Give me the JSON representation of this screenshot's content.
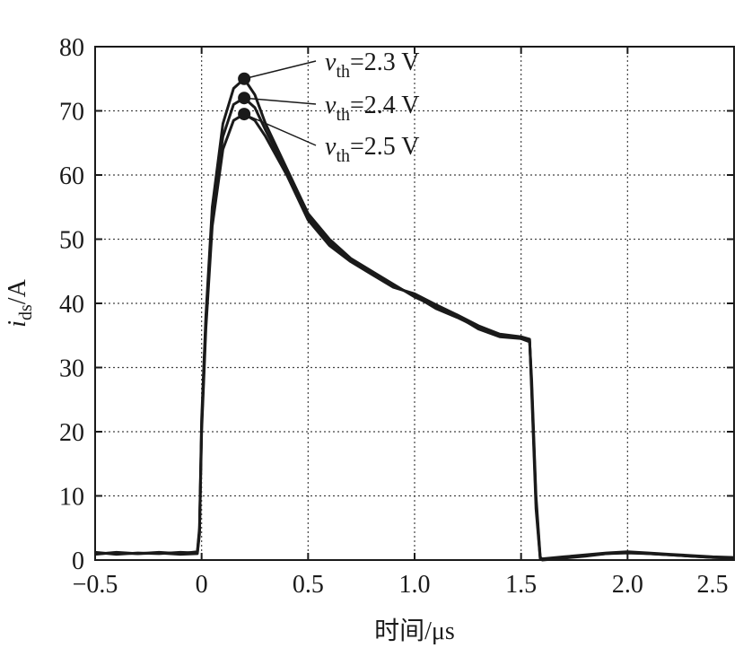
{
  "chart_data": {
    "type": "line",
    "xlabel": "时间/μs",
    "ylabel": {
      "main": "i",
      "sub": "ds",
      "unit": "/A"
    },
    "xlim": [
      -0.5,
      2.5
    ],
    "ylim": [
      0,
      80
    ],
    "xticks": [
      -0.5,
      0,
      0.5,
      1.0,
      1.5,
      2.0,
      2.5
    ],
    "xtick_labels": [
      "−0.5",
      "0",
      "0.5",
      "1.0",
      "1.5",
      "2.0",
      "2.5"
    ],
    "yticks": [
      0,
      10,
      20,
      30,
      40,
      50,
      60,
      70,
      80
    ],
    "ytick_labels": [
      "0",
      "10",
      "20",
      "30",
      "40",
      "50",
      "60",
      "70",
      "80"
    ],
    "grid": true,
    "series": [
      {
        "name": "vth=2.3 V",
        "x": [
          -0.5,
          -0.4,
          -0.3,
          -0.2,
          -0.1,
          -0.02,
          -0.01,
          0.0,
          0.02,
          0.05,
          0.1,
          0.15,
          0.2,
          0.25,
          0.3,
          0.4,
          0.5,
          0.6,
          0.7,
          0.8,
          0.9,
          1.0,
          1.1,
          1.2,
          1.3,
          1.4,
          1.5,
          1.54,
          1.55,
          1.57,
          1.59,
          1.6,
          1.7,
          1.8,
          1.9,
          2.0,
          2.1,
          2.2,
          2.3,
          2.4,
          2.5
        ],
        "y": [
          1.0,
          1.1,
          1.0,
          1.2,
          1.0,
          1.3,
          5.0,
          22.0,
          38.0,
          55.0,
          68.0,
          73.5,
          75.0,
          72.5,
          68.0,
          61.0,
          54.0,
          50.0,
          47.0,
          45.0,
          43.0,
          41.0,
          39.5,
          38.0,
          36.0,
          34.8,
          34.5,
          34.0,
          28.0,
          10.0,
          0.5,
          0.0,
          0.3,
          0.6,
          1.0,
          1.2,
          1.0,
          0.8,
          0.6,
          0.4,
          0.3
        ]
      },
      {
        "name": "vth=2.4 V",
        "x": [
          -0.5,
          -0.4,
          -0.3,
          -0.2,
          -0.1,
          -0.02,
          -0.01,
          0.0,
          0.02,
          0.05,
          0.1,
          0.15,
          0.2,
          0.25,
          0.3,
          0.4,
          0.5,
          0.6,
          0.7,
          0.8,
          0.9,
          1.0,
          1.1,
          1.2,
          1.3,
          1.4,
          1.5,
          1.54,
          1.55,
          1.57,
          1.59,
          1.6,
          1.7,
          1.8,
          1.9,
          2.0,
          2.1,
          2.2,
          2.3,
          2.4,
          2.5
        ],
        "y": [
          1.2,
          0.9,
          1.1,
          1.0,
          1.2,
          1.1,
          4.5,
          21.0,
          37.0,
          54.0,
          66.0,
          71.0,
          72.0,
          70.5,
          67.0,
          60.5,
          53.5,
          49.5,
          46.8,
          44.8,
          42.8,
          41.2,
          39.2,
          37.8,
          36.2,
          35.0,
          34.6,
          34.2,
          27.0,
          9.0,
          0.3,
          0.2,
          0.5,
          0.8,
          1.1,
          1.3,
          1.1,
          0.9,
          0.7,
          0.5,
          0.4
        ]
      },
      {
        "name": "vth=2.5 V",
        "x": [
          -0.5,
          -0.4,
          -0.3,
          -0.2,
          -0.1,
          -0.02,
          -0.01,
          0.0,
          0.02,
          0.05,
          0.1,
          0.15,
          0.2,
          0.25,
          0.3,
          0.4,
          0.5,
          0.6,
          0.7,
          0.8,
          0.9,
          1.0,
          1.1,
          1.2,
          1.3,
          1.4,
          1.5,
          1.54,
          1.55,
          1.57,
          1.59,
          1.6,
          1.7,
          1.8,
          1.9,
          2.0,
          2.1,
          2.2,
          2.3,
          2.4,
          2.5
        ],
        "y": [
          0.9,
          1.2,
          1.0,
          1.1,
          0.9,
          1.0,
          4.0,
          20.0,
          36.0,
          52.0,
          64.0,
          68.5,
          69.5,
          68.5,
          66.0,
          60.0,
          53.0,
          49.0,
          46.5,
          44.5,
          42.5,
          41.5,
          39.8,
          38.2,
          36.5,
          35.2,
          34.8,
          34.4,
          26.0,
          8.0,
          0.2,
          0.1,
          0.4,
          0.7,
          1.0,
          1.1,
          1.0,
          0.8,
          0.6,
          0.4,
          0.3
        ]
      }
    ],
    "annotations": [
      {
        "var": "v",
        "sub": "th",
        "rest": "=2.3 V",
        "peak_x": 0.2,
        "peak_y": 75.0
      },
      {
        "var": "v",
        "sub": "th",
        "rest": "=2.4 V",
        "peak_x": 0.2,
        "peak_y": 72.0
      },
      {
        "var": "v",
        "sub": "th",
        "rest": "=2.5 V",
        "peak_x": 0.2,
        "peak_y": 69.5
      }
    ]
  }
}
